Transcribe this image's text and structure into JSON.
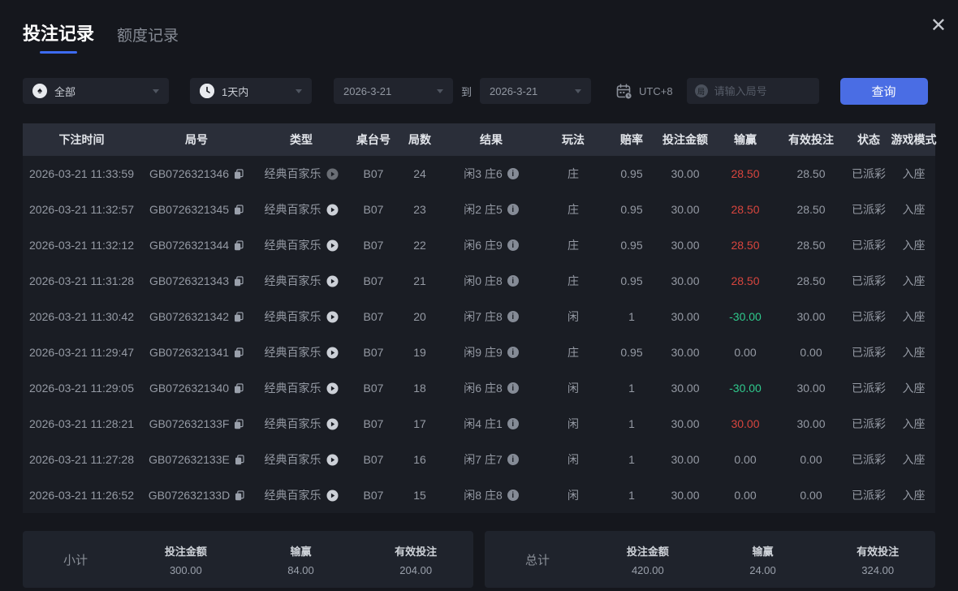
{
  "window": {
    "close_icon": "✕"
  },
  "tabs": [
    {
      "label": "投注记录",
      "active": true
    },
    {
      "label": "额度记录",
      "active": false
    }
  ],
  "filters": {
    "game_type": {
      "value": "全部",
      "icon": "spade"
    },
    "time_range": {
      "value": "1天内",
      "icon": "clock"
    },
    "date_from": "2026-3-21",
    "to_label": "到",
    "date_to": "2026-3-21",
    "timezone": "UTC+8",
    "round_input_placeholder": "请输入局号",
    "search_button": "查询"
  },
  "table": {
    "headers": [
      "下注时间",
      "局号",
      "类型",
      "桌台号",
      "局数",
      "结果",
      "玩法",
      "赔率",
      "投注金额",
      "输赢",
      "有效投注",
      "状态",
      "游戏模式"
    ],
    "rows": [
      {
        "time": "2026-03-21 11:33:59",
        "round_id": "GB0726321346",
        "type": "经典百家乐",
        "table_no": "B07",
        "rounds": "24",
        "result": "闲3 庄6",
        "play": "庄",
        "odds": "0.95",
        "bet_amount": "30.00",
        "win_loss": "28.50",
        "win_loss_color": "red",
        "valid_bet": "28.50",
        "status": "已派彩",
        "mode": "入座"
      },
      {
        "time": "2026-03-21 11:32:57",
        "round_id": "GB0726321345",
        "type": "经典百家乐",
        "table_no": "B07",
        "rounds": "23",
        "result": "闲2 庄5",
        "play": "庄",
        "odds": "0.95",
        "bet_amount": "30.00",
        "win_loss": "28.50",
        "win_loss_color": "red",
        "valid_bet": "28.50",
        "status": "已派彩",
        "mode": "入座"
      },
      {
        "time": "2026-03-21 11:32:12",
        "round_id": "GB0726321344",
        "type": "经典百家乐",
        "table_no": "B07",
        "rounds": "22",
        "result": "闲6 庄9",
        "play": "庄",
        "odds": "0.95",
        "bet_amount": "30.00",
        "win_loss": "28.50",
        "win_loss_color": "red",
        "valid_bet": "28.50",
        "status": "已派彩",
        "mode": "入座"
      },
      {
        "time": "2026-03-21 11:31:28",
        "round_id": "GB0726321343",
        "type": "经典百家乐",
        "table_no": "B07",
        "rounds": "21",
        "result": "闲0 庄8",
        "play": "庄",
        "odds": "0.95",
        "bet_amount": "30.00",
        "win_loss": "28.50",
        "win_loss_color": "red",
        "valid_bet": "28.50",
        "status": "已派彩",
        "mode": "入座"
      },
      {
        "time": "2026-03-21 11:30:42",
        "round_id": "GB0726321342",
        "type": "经典百家乐",
        "table_no": "B07",
        "rounds": "20",
        "result": "闲7 庄8",
        "play": "闲",
        "odds": "1",
        "bet_amount": "30.00",
        "win_loss": "-30.00",
        "win_loss_color": "green",
        "valid_bet": "30.00",
        "status": "已派彩",
        "mode": "入座"
      },
      {
        "time": "2026-03-21 11:29:47",
        "round_id": "GB0726321341",
        "type": "经典百家乐",
        "table_no": "B07",
        "rounds": "19",
        "result": "闲9 庄9",
        "play": "庄",
        "odds": "0.95",
        "bet_amount": "30.00",
        "win_loss": "0.00",
        "win_loss_color": "gray",
        "valid_bet": "0.00",
        "status": "已派彩",
        "mode": "入座"
      },
      {
        "time": "2026-03-21 11:29:05",
        "round_id": "GB0726321340",
        "type": "经典百家乐",
        "table_no": "B07",
        "rounds": "18",
        "result": "闲6 庄8",
        "play": "闲",
        "odds": "1",
        "bet_amount": "30.00",
        "win_loss": "-30.00",
        "win_loss_color": "green",
        "valid_bet": "30.00",
        "status": "已派彩",
        "mode": "入座"
      },
      {
        "time": "2026-03-21 11:28:21",
        "round_id": "GB072632133F",
        "type": "经典百家乐",
        "table_no": "B07",
        "rounds": "17",
        "result": "闲4 庄1",
        "play": "闲",
        "odds": "1",
        "bet_amount": "30.00",
        "win_loss": "30.00",
        "win_loss_color": "red",
        "valid_bet": "30.00",
        "status": "已派彩",
        "mode": "入座"
      },
      {
        "time": "2026-03-21 11:27:28",
        "round_id": "GB072632133E",
        "type": "经典百家乐",
        "table_no": "B07",
        "rounds": "16",
        "result": "闲7 庄7",
        "play": "闲",
        "odds": "1",
        "bet_amount": "30.00",
        "win_loss": "0.00",
        "win_loss_color": "gray",
        "valid_bet": "0.00",
        "status": "已派彩",
        "mode": "入座"
      },
      {
        "time": "2026-03-21 11:26:52",
        "round_id": "GB072632133D",
        "type": "经典百家乐",
        "table_no": "B07",
        "rounds": "15",
        "result": "闲8 庄8",
        "play": "闲",
        "odds": "1",
        "bet_amount": "30.00",
        "win_loss": "0.00",
        "win_loss_color": "gray",
        "valid_bet": "0.00",
        "status": "已派彩",
        "mode": "入座"
      }
    ]
  },
  "summary": {
    "subtotal": {
      "label": "小计",
      "bet_amount_label": "投注金额",
      "bet_amount": "300.00",
      "win_loss_label": "输赢",
      "win_loss": "84.00",
      "valid_bet_label": "有效投注",
      "valid_bet": "204.00"
    },
    "total": {
      "label": "总计",
      "bet_amount_label": "投注金额",
      "bet_amount": "420.00",
      "win_loss_label": "输赢",
      "win_loss": "24.00",
      "valid_bet_label": "有效投注",
      "valid_bet": "324.00"
    }
  },
  "colors": {
    "accent": "#4a6de4",
    "tab_underline": "#3d6bf0",
    "win_red": "#d8453e",
    "loss_green": "#2fc98c"
  }
}
